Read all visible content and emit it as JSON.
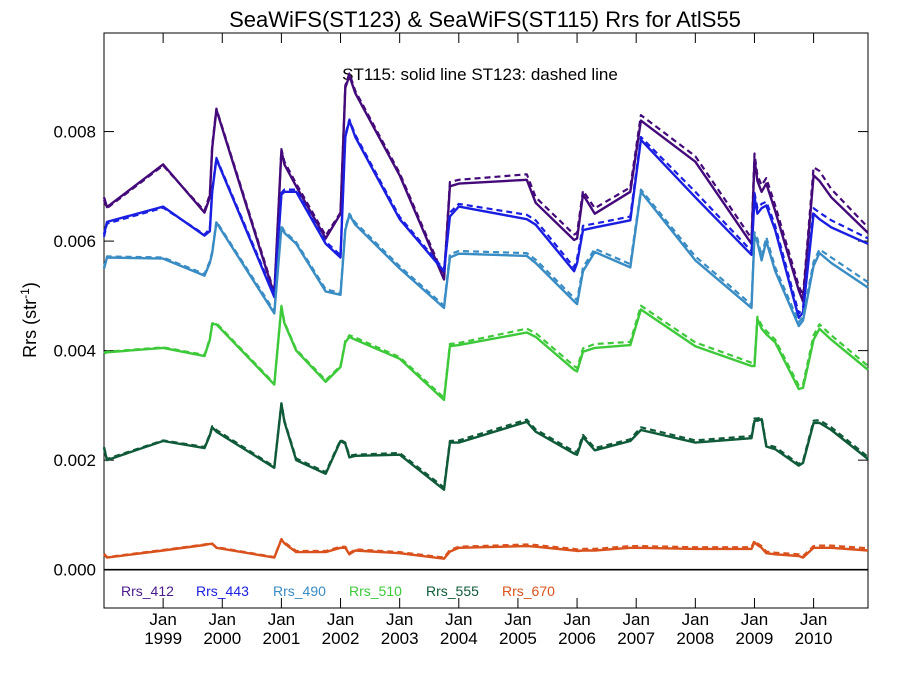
{
  "chart_data": {
    "type": "line",
    "title": "SeaWiFS(ST123) & SeaWiFS(ST115)  Rrs for AtlS55",
    "annotation": "ST115: solid line   ST123: dashed line",
    "ylabel": "Rrs (str",
    "ylabel_sup": "-1",
    "ylabel_close": ")",
    "xlim": [
      1998.0,
      2010.92
    ],
    "ylim": [
      -0.0007,
      0.0098
    ],
    "yticks": [
      0.0,
      0.002,
      0.004,
      0.006,
      0.008
    ],
    "ytick_labels": [
      "0.000",
      "0.002",
      "0.004",
      "0.006",
      "0.008"
    ],
    "xticks": [
      {
        "x": 1999,
        "month": "Jan",
        "year": "1999"
      },
      {
        "x": 2000,
        "month": "Jan",
        "year": "2000"
      },
      {
        "x": 2001,
        "month": "Jan",
        "year": "2001"
      },
      {
        "x": 2002,
        "month": "Jan",
        "year": "2002"
      },
      {
        "x": 2003,
        "month": "Jan",
        "year": "2003"
      },
      {
        "x": 2004,
        "month": "Jan",
        "year": "2004"
      },
      {
        "x": 2005,
        "month": "Jan",
        "year": "2005"
      },
      {
        "x": 2006,
        "month": "Jan",
        "year": "2006"
      },
      {
        "x": 2007,
        "month": "Jan",
        "year": "2007"
      },
      {
        "x": 2008,
        "month": "Jan",
        "year": "2008"
      },
      {
        "x": 2009,
        "month": "Jan",
        "year": "2009"
      },
      {
        "x": 2010,
        "month": "Jan",
        "year": "2010"
      }
    ],
    "x": [
      1998.0,
      1998.05,
      1999.0,
      1999.7,
      1999.79,
      1999.83,
      1999.9,
      2000.88,
      2001.0,
      2001.05,
      2001.25,
      2001.75,
      2002.0,
      2002.08,
      2002.15,
      2002.25,
      2003.0,
      2003.75,
      2003.85,
      2004.0,
      2005.15,
      2005.3,
      2005.95,
      2006.0,
      2006.1,
      2006.3,
      2006.9,
      2007.08,
      2008.0,
      2008.95,
      2009.0,
      2009.05,
      2009.12,
      2009.2,
      2009.35,
      2009.75,
      2009.82,
      2010.0,
      2010.1,
      2010.3,
      2010.92
    ],
    "series": [
      {
        "name": "Rrs_412",
        "color": "#440a7a",
        "legend_color": "#4a1a8c",
        "solid": [
          0.0068,
          0.00662,
          0.0074,
          0.00652,
          0.0068,
          0.0077,
          0.0084,
          0.00502,
          0.00765,
          0.0074,
          0.007,
          0.00605,
          0.0065,
          0.0088,
          0.00902,
          0.0087,
          0.0072,
          0.0053,
          0.007,
          0.00705,
          0.00712,
          0.0067,
          0.00602,
          0.00605,
          0.00685,
          0.0065,
          0.0069,
          0.0082,
          0.00745,
          0.00595,
          0.0075,
          0.0071,
          0.0069,
          0.00705,
          0.00655,
          0.0051,
          0.0049,
          0.0072,
          0.0071,
          0.0068,
          0.00615
        ],
        "dashed": [
          0.00675,
          0.0066,
          0.00738,
          0.00655,
          0.00685,
          0.00775,
          0.00842,
          0.00506,
          0.00768,
          0.00745,
          0.00705,
          0.0061,
          0.00652,
          0.00884,
          0.00906,
          0.00874,
          0.00724,
          0.00535,
          0.00708,
          0.00712,
          0.00722,
          0.0068,
          0.00612,
          0.00615,
          0.00692,
          0.0066,
          0.00698,
          0.0083,
          0.00755,
          0.00605,
          0.0076,
          0.0072,
          0.00702,
          0.00715,
          0.00665,
          0.00518,
          0.005,
          0.00735,
          0.00728,
          0.00695,
          0.00625
        ]
      },
      {
        "name": "Rrs_443",
        "color": "#1a1ee0",
        "legend_color": "#1a1ee0",
        "solid": [
          0.00612,
          0.00635,
          0.00663,
          0.0061,
          0.00618,
          0.0069,
          0.0075,
          0.00498,
          0.00685,
          0.0069,
          0.0069,
          0.00595,
          0.0057,
          0.0079,
          0.0082,
          0.0079,
          0.0064,
          0.00545,
          0.00645,
          0.00663,
          0.0064,
          0.0063,
          0.00545,
          0.0056,
          0.0062,
          0.00625,
          0.00638,
          0.00785,
          0.0068,
          0.00575,
          0.0068,
          0.0065,
          0.0066,
          0.00665,
          0.0062,
          0.0046,
          0.0047,
          0.0065,
          0.0064,
          0.00625,
          0.00595
        ],
        "dashed": [
          0.00608,
          0.00632,
          0.00661,
          0.00612,
          0.00622,
          0.00694,
          0.00752,
          0.00502,
          0.00688,
          0.00694,
          0.00694,
          0.00599,
          0.00574,
          0.00794,
          0.00822,
          0.00794,
          0.00644,
          0.00548,
          0.00652,
          0.00668,
          0.00648,
          0.00638,
          0.00552,
          0.00568,
          0.00628,
          0.00632,
          0.00645,
          0.0079,
          0.0069,
          0.00582,
          0.00688,
          0.0066,
          0.00668,
          0.00672,
          0.00628,
          0.00468,
          0.00478,
          0.0066,
          0.00652,
          0.00638,
          0.00605
        ]
      },
      {
        "name": "Rrs_490",
        "color": "#3a8cc4",
        "legend_color": "#3a8cc4",
        "solid": [
          0.0055,
          0.0057,
          0.00568,
          0.00537,
          0.0056,
          0.00578,
          0.00634,
          0.00468,
          0.00625,
          0.00615,
          0.00595,
          0.00508,
          0.00502,
          0.0062,
          0.00648,
          0.0063,
          0.0055,
          0.00478,
          0.0057,
          0.00577,
          0.00573,
          0.0056,
          0.0049,
          0.00485,
          0.00545,
          0.0058,
          0.00552,
          0.0069,
          0.00565,
          0.00478,
          0.0061,
          0.00598,
          0.00565,
          0.006,
          0.00545,
          0.00445,
          0.00455,
          0.00555,
          0.00578,
          0.0056,
          0.00515
        ],
        "dashed": [
          0.00552,
          0.00572,
          0.0057,
          0.0054,
          0.00563,
          0.00581,
          0.00636,
          0.00472,
          0.00628,
          0.00618,
          0.00598,
          0.00512,
          0.00505,
          0.00624,
          0.0065,
          0.00634,
          0.00554,
          0.00482,
          0.00576,
          0.00582,
          0.00578,
          0.00566,
          0.00496,
          0.00492,
          0.00552,
          0.00586,
          0.00558,
          0.00694,
          0.00572,
          0.00484,
          0.00616,
          0.00605,
          0.00572,
          0.00607,
          0.00552,
          0.00452,
          0.00462,
          0.00562,
          0.00585,
          0.0057,
          0.00525
        ]
      },
      {
        "name": "Rrs_510",
        "color": "#3ec93a",
        "legend_color": "#3ec93a",
        "solid": [
          0.00395,
          0.00397,
          0.00405,
          0.0039,
          0.0042,
          0.00448,
          0.00448,
          0.00338,
          0.0048,
          0.0045,
          0.004,
          0.00343,
          0.0037,
          0.00415,
          0.00425,
          0.0042,
          0.00385,
          0.0031,
          0.00408,
          0.0041,
          0.00433,
          0.00425,
          0.00365,
          0.00362,
          0.00398,
          0.00405,
          0.0041,
          0.00475,
          0.00408,
          0.00372,
          0.00372,
          0.00458,
          0.0044,
          0.0043,
          0.00415,
          0.0033,
          0.00332,
          0.0042,
          0.0044,
          0.0042,
          0.00365
        ],
        "dashed": [
          0.00396,
          0.00398,
          0.00406,
          0.00392,
          0.00422,
          0.0045,
          0.0045,
          0.0034,
          0.00482,
          0.00452,
          0.00402,
          0.00346,
          0.00372,
          0.00418,
          0.00428,
          0.00424,
          0.00388,
          0.00314,
          0.00412,
          0.00414,
          0.0044,
          0.00432,
          0.00372,
          0.00368,
          0.00404,
          0.00412,
          0.00416,
          0.00482,
          0.00415,
          0.00378,
          0.00378,
          0.00462,
          0.00446,
          0.00436,
          0.0042,
          0.00336,
          0.00338,
          0.00428,
          0.00448,
          0.00428,
          0.00372
        ]
      },
      {
        "name": "Rrs_555",
        "color": "#0f5a38",
        "legend_color": "#0f5a38",
        "solid": [
          0.00222,
          0.002,
          0.00235,
          0.00222,
          0.00245,
          0.0026,
          0.00252,
          0.00186,
          0.00303,
          0.0027,
          0.002,
          0.00175,
          0.00235,
          0.0023,
          0.00205,
          0.00208,
          0.0021,
          0.00146,
          0.00232,
          0.00232,
          0.0027,
          0.00252,
          0.00212,
          0.0021,
          0.00242,
          0.00218,
          0.00235,
          0.00255,
          0.00232,
          0.0024,
          0.00272,
          0.00272,
          0.00275,
          0.00225,
          0.0022,
          0.0019,
          0.00195,
          0.00268,
          0.00268,
          0.00255,
          0.00202
        ],
        "dashed": [
          0.00224,
          0.00202,
          0.00236,
          0.00224,
          0.00247,
          0.00262,
          0.00255,
          0.00188,
          0.00304,
          0.00272,
          0.00203,
          0.00178,
          0.00237,
          0.00232,
          0.00208,
          0.0021,
          0.00213,
          0.0015,
          0.00235,
          0.00236,
          0.00274,
          0.00256,
          0.00216,
          0.00215,
          0.00246,
          0.00222,
          0.00238,
          0.0026,
          0.00236,
          0.00244,
          0.00276,
          0.00276,
          0.00278,
          0.00228,
          0.00224,
          0.00193,
          0.00198,
          0.00272,
          0.00273,
          0.0026,
          0.00206
        ]
      },
      {
        "name": "Rrs_670",
        "color": "#d9511c",
        "legend_color": "#d9511c",
        "solid": [
          0.00028,
          0.00022,
          0.00035,
          0.00045,
          0.00047,
          0.00047,
          0.0004,
          0.00022,
          0.00055,
          0.00048,
          0.00032,
          0.00032,
          0.0004,
          0.0004,
          0.00028,
          0.00035,
          0.0003,
          0.0002,
          0.00033,
          0.0004,
          0.00043,
          0.00042,
          0.00035,
          0.00034,
          0.00035,
          0.00035,
          0.0004,
          0.0004,
          0.00038,
          0.00038,
          0.0005,
          0.00045,
          0.0004,
          0.0003,
          0.00028,
          0.00025,
          0.00022,
          0.0004,
          0.0004,
          0.0004,
          0.00035
        ],
        "dashed": [
          0.00029,
          0.00023,
          0.00036,
          0.00046,
          0.00048,
          0.00048,
          0.00041,
          0.00023,
          0.00056,
          0.0005,
          0.00034,
          0.00034,
          0.00042,
          0.00042,
          0.0003,
          0.00037,
          0.00032,
          0.00022,
          0.00036,
          0.00042,
          0.00046,
          0.00045,
          0.00038,
          0.00037,
          0.00038,
          0.00038,
          0.00043,
          0.00043,
          0.00041,
          0.00041,
          0.00053,
          0.00048,
          0.00043,
          0.00033,
          0.00031,
          0.00028,
          0.00025,
          0.00043,
          0.00044,
          0.00044,
          0.00039
        ]
      }
    ],
    "zero_line": true
  }
}
